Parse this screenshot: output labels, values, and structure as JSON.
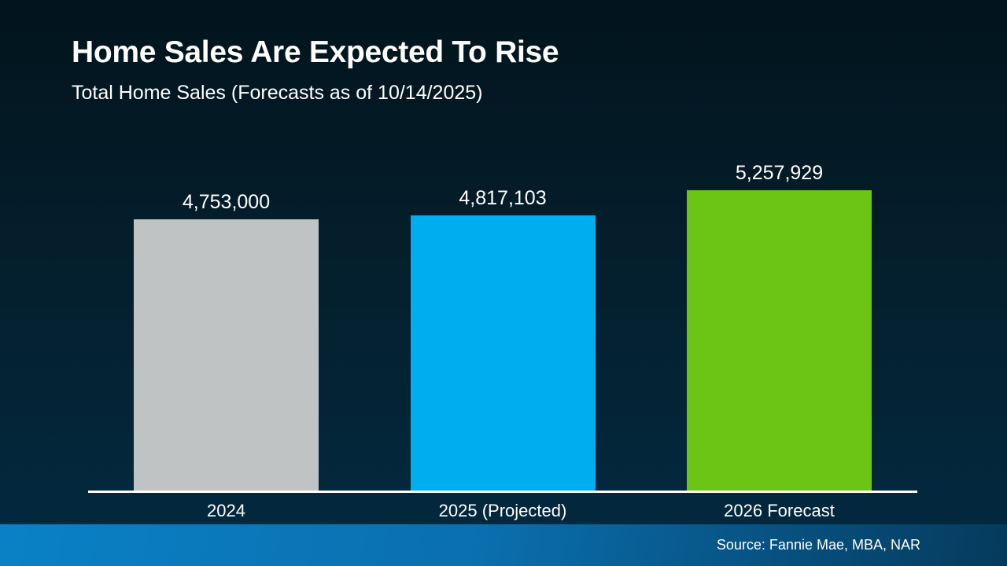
{
  "header": {
    "title": "Home Sales Are Expected To Rise",
    "subtitle": "Total Home Sales (Forecasts as of 10/14/2025)"
  },
  "footer": {
    "source": "Source: Fannie Mae, MBA, NAR"
  },
  "colors": {
    "background_top": "#02141d",
    "background_mid": "#041e2b",
    "background_bottom": "#03293f",
    "banner_left": "#0a81c6",
    "banner_mid": "#0a6fae",
    "banner_right": "#053a5c",
    "axis": "#ffffff",
    "text": "#ffffff",
    "bar_2024": "#c0c3c4",
    "bar_2025": "#00aeef",
    "bar_2026": "#6cc414"
  },
  "chart_data": {
    "type": "bar",
    "title": "Home Sales Are Expected To Rise",
    "subtitle": "Total Home Sales (Forecasts as of 10/14/2025)",
    "categories": [
      "2024",
      "2025 (Projected)",
      "2026 Forecast"
    ],
    "values": [
      4753000,
      4817103,
      5257929
    ],
    "value_labels": [
      "4,753,000",
      "4,817,103",
      "5,257,929"
    ],
    "bar_colors": [
      "#c0c3c4",
      "#00aeef",
      "#6cc414"
    ],
    "xlabel": "",
    "ylabel": "",
    "ylim": [
      0,
      5257929
    ],
    "grid": false,
    "legend": false,
    "value_labels_position": "above-bars",
    "baseline_axis": "white",
    "source": "Source: Fannie Mae, MBA, NAR"
  }
}
